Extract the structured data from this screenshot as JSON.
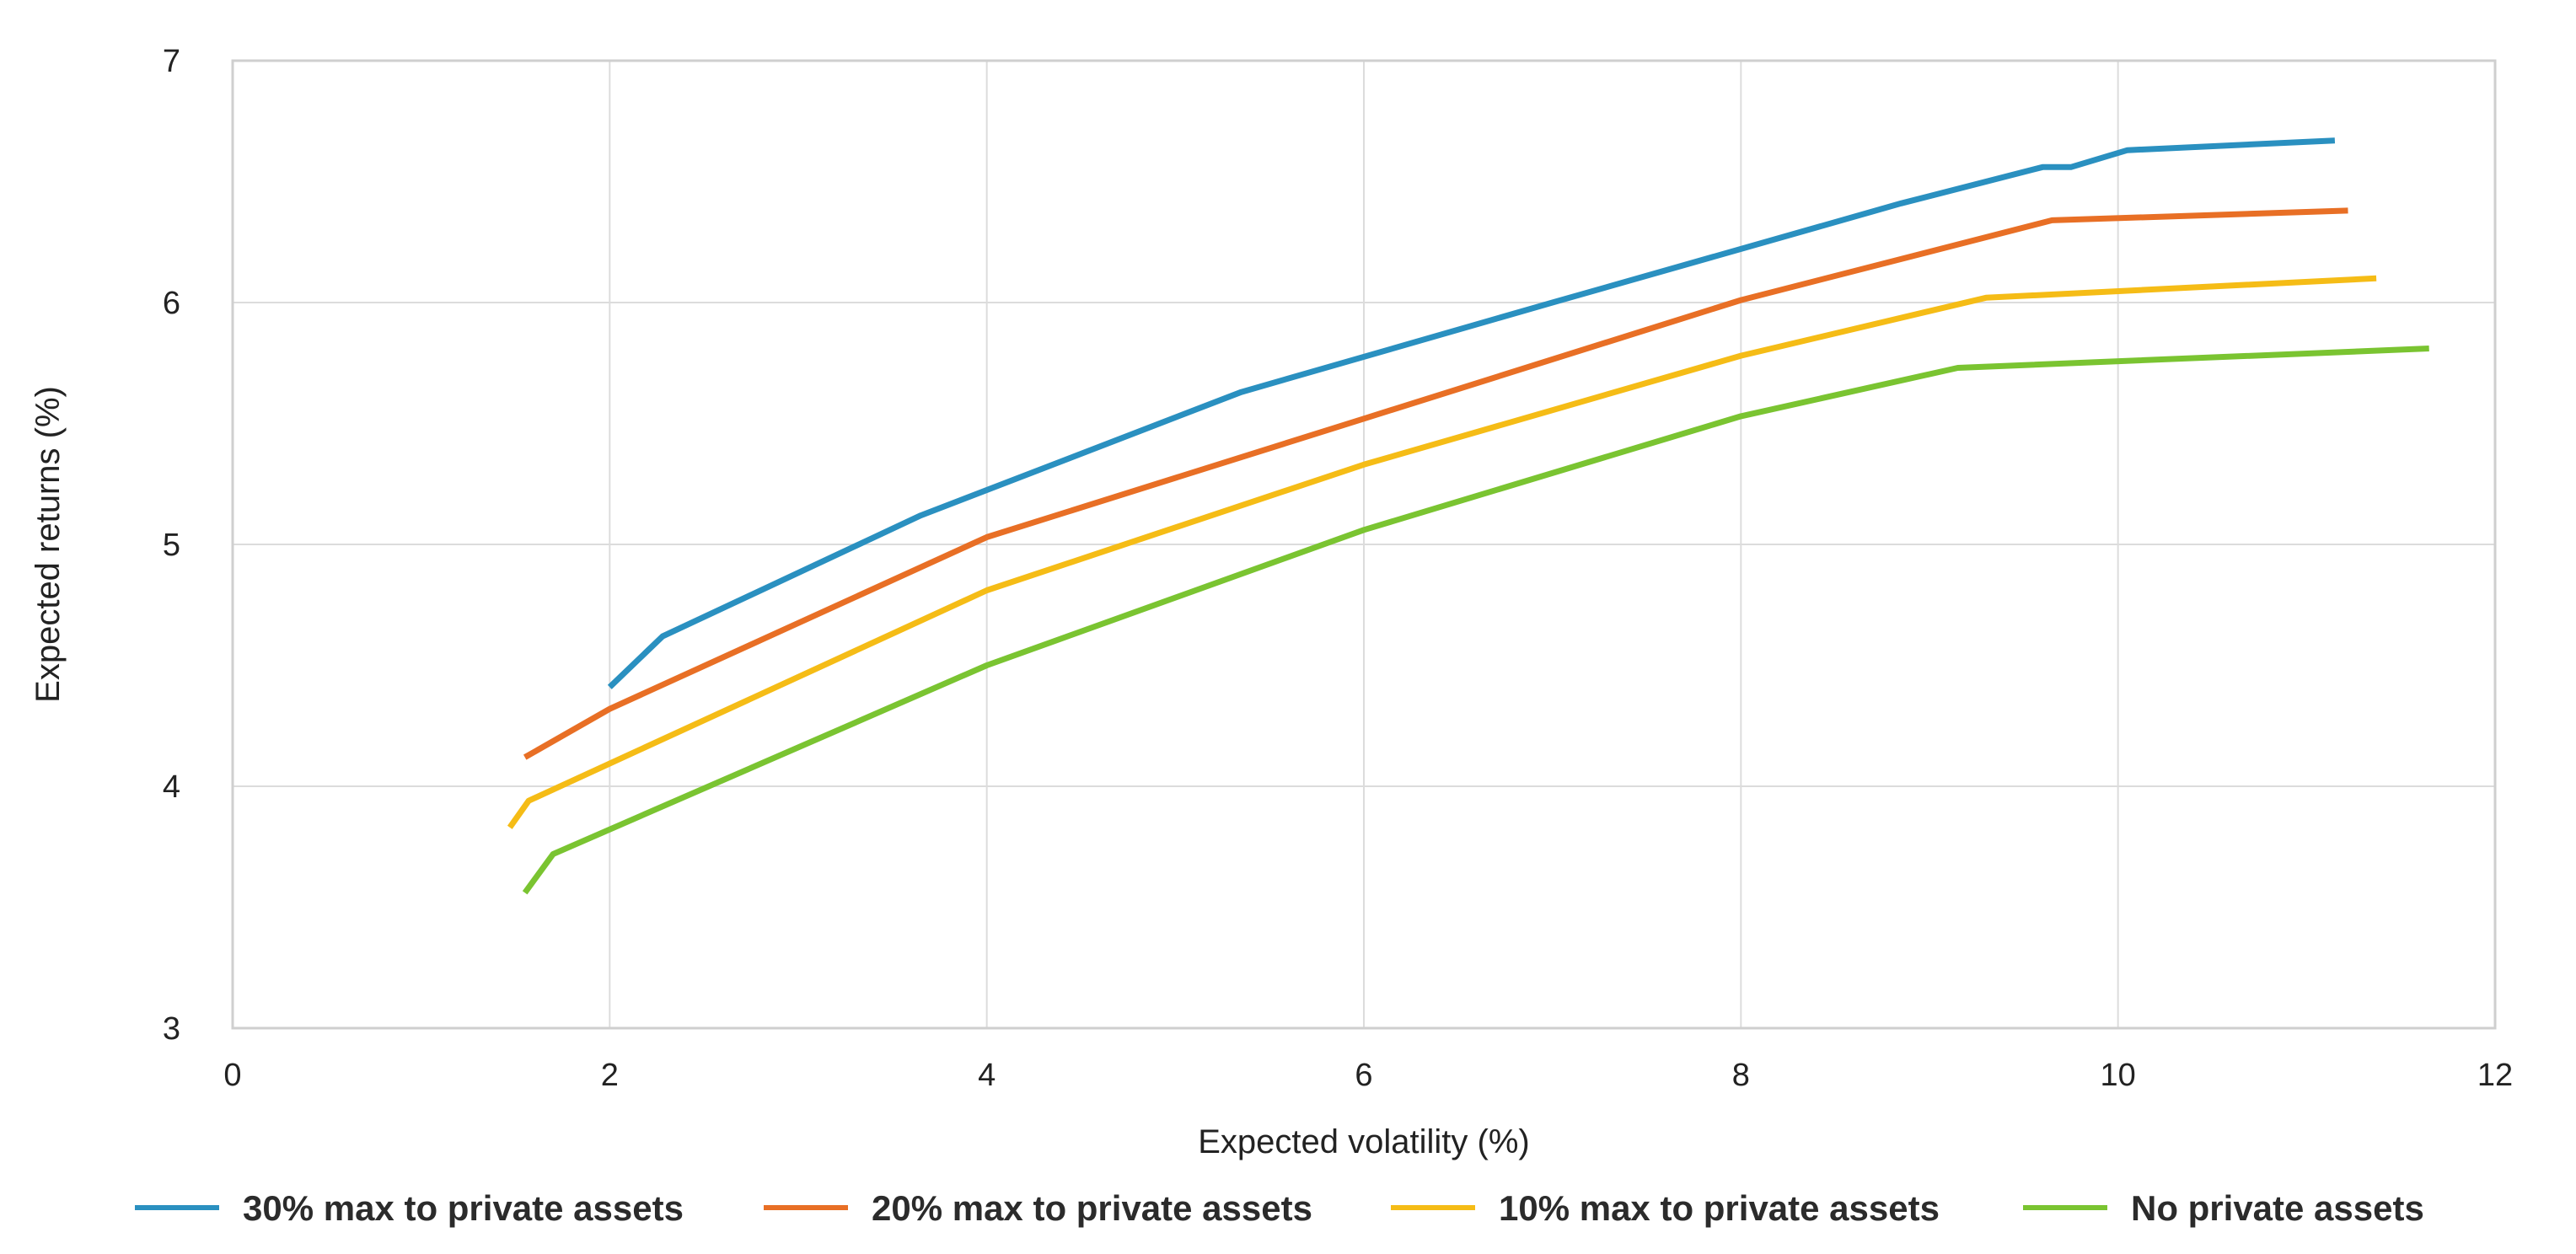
{
  "chart_data": {
    "type": "line",
    "title": "",
    "xlabel": "Expected volatility (%)",
    "ylabel": "Expected returns (%)",
    "xlim": [
      0,
      12
    ],
    "ylim": [
      3,
      7
    ],
    "x_ticks": [
      "0",
      "2",
      "4",
      "6",
      "8",
      "10",
      "12"
    ],
    "y_ticks": [
      "3",
      "4",
      "5",
      "6",
      "7"
    ],
    "grid": true,
    "legend_position": "bottom",
    "series": [
      {
        "name": "30% max to private assets",
        "color": "#2a90c0",
        "points": [
          [
            2.0,
            4.41
          ],
          [
            2.28,
            4.62
          ],
          [
            3.65,
            5.12
          ],
          [
            5.35,
            5.63
          ],
          [
            7.0,
            6.0
          ],
          [
            8.85,
            6.41
          ],
          [
            9.6,
            6.56
          ],
          [
            9.75,
            6.56
          ],
          [
            10.05,
            6.63
          ],
          [
            11.15,
            6.67
          ]
        ]
      },
      {
        "name": "20% max to private assets",
        "color": "#e86f25",
        "points": [
          [
            1.55,
            4.12
          ],
          [
            2.0,
            4.32
          ],
          [
            4.0,
            5.03
          ],
          [
            6.0,
            5.52
          ],
          [
            8.0,
            6.01
          ],
          [
            9.65,
            6.34
          ],
          [
            11.22,
            6.38
          ]
        ]
      },
      {
        "name": "10% max to private assets",
        "color": "#f5bc16",
        "points": [
          [
            1.47,
            3.83
          ],
          [
            1.57,
            3.94
          ],
          [
            4.0,
            4.81
          ],
          [
            6.0,
            5.33
          ],
          [
            8.0,
            5.78
          ],
          [
            9.3,
            6.02
          ],
          [
            11.37,
            6.1
          ]
        ]
      },
      {
        "name": "No private assets",
        "color": "#7ac431",
        "points": [
          [
            1.55,
            3.56
          ],
          [
            1.7,
            3.72
          ],
          [
            4.0,
            4.5
          ],
          [
            6.0,
            5.06
          ],
          [
            8.0,
            5.53
          ],
          [
            9.15,
            5.73
          ],
          [
            11.65,
            5.81
          ]
        ]
      }
    ]
  }
}
